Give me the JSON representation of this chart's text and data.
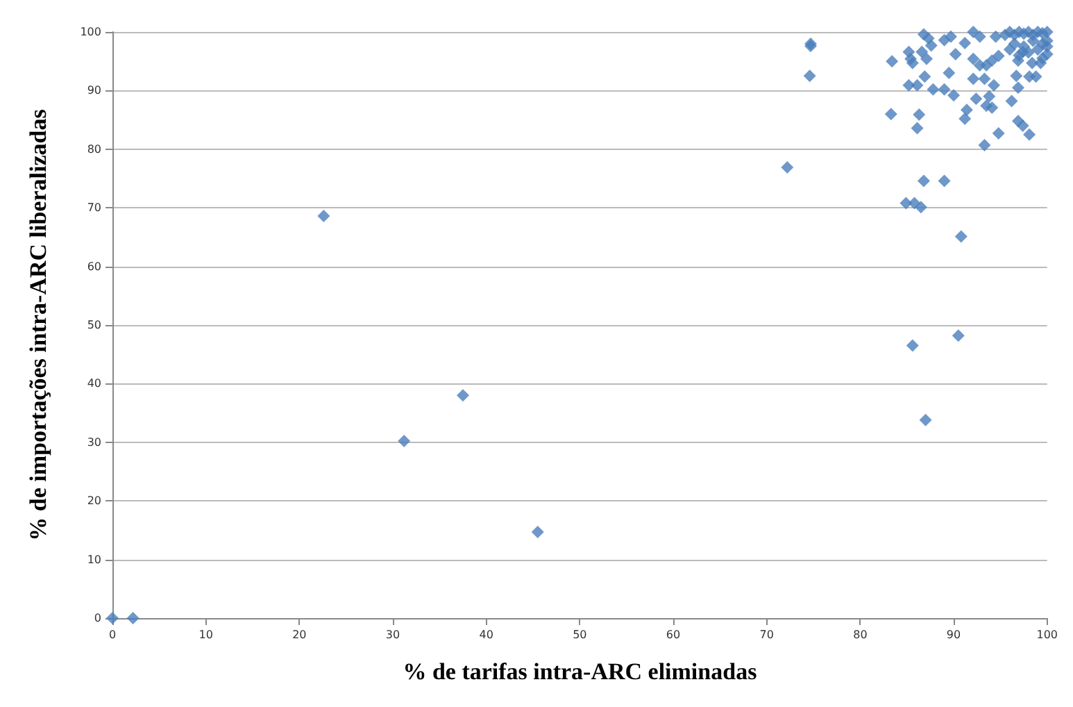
{
  "chart_data": {
    "type": "scatter",
    "xlabel": "% de tarifas intra-ARC eliminadas",
    "ylabel": "% de importações intra-ARC liberalizadas",
    "xlim": [
      0,
      100
    ],
    "ylim": [
      0,
      100
    ],
    "xticks": [
      0,
      10,
      20,
      30,
      40,
      50,
      60,
      70,
      80,
      90,
      100
    ],
    "yticks": [
      0,
      10,
      20,
      30,
      40,
      50,
      60,
      70,
      80,
      90,
      100
    ],
    "grid": "y",
    "marker": "diamond",
    "series": [
      {
        "color": "#4a7ebb",
        "x": [
          0,
          2.2,
          22.6,
          31.2,
          37.5,
          45.5,
          72.2,
          74.7,
          74.7,
          74.6,
          83.3,
          83.4,
          84.9,
          85.8,
          85.6,
          86.5,
          86.8,
          89.0,
          87.0,
          90.5,
          90.8,
          86.8,
          87.3,
          89.0,
          89.7,
          92.1,
          92.8,
          94.5,
          85.2,
          85.4,
          85.6,
          86.6,
          87.6,
          87.1,
          90.2,
          91.2,
          92.1,
          92.8,
          93.5,
          94.1,
          94.8,
          86.9,
          89.5,
          92.1,
          93.3,
          85.2,
          86.1,
          87.8,
          89.0,
          90.0,
          92.4,
          93.8,
          94.3,
          96.2,
          96.7,
          96.9,
          98.1,
          98.8,
          97.4,
          98.4,
          99.3,
          100,
          96.9,
          86.3,
          86.1,
          91.4,
          91.2,
          93.5,
          94.1,
          96.9,
          97.4,
          98.1,
          94.8,
          93.3,
          95.5,
          96,
          96.5,
          97,
          97.5,
          98,
          98.5,
          99,
          99.5,
          100,
          96.5,
          97.5,
          98.5,
          99.5,
          100,
          96,
          97,
          98,
          99,
          99.5,
          100
        ],
        "values": [
          0,
          0,
          68.6,
          30.2,
          38,
          14.7,
          76.9,
          98,
          97.6,
          92.5,
          86,
          95,
          70.8,
          70.8,
          46.5,
          70.1,
          74.6,
          74.6,
          33.8,
          48.2,
          65.1,
          99.6,
          98.9,
          98.6,
          99.2,
          100,
          99.2,
          99.2,
          96.6,
          95.4,
          94.7,
          96.6,
          97.7,
          95.4,
          96.2,
          98.1,
          95.4,
          94.3,
          94.3,
          95.1,
          95.9,
          92.4,
          93.0,
          92.0,
          92.0,
          90.9,
          90.9,
          90.2,
          90.2,
          89.2,
          88.6,
          89.0,
          90.9,
          88.2,
          92.5,
          90.5,
          92.4,
          92.4,
          96.6,
          94.7,
          94.7,
          96.2,
          95.1,
          85.9,
          83.6,
          86.7,
          85.2,
          87.4,
          87.1,
          84.8,
          84.0,
          82.5,
          82.7,
          80.7,
          99.5,
          100,
          99.5,
          100,
          99.7,
          100,
          99.5,
          100,
          99.8,
          100,
          98,
          97.5,
          98.5,
          98,
          97.5,
          97,
          96,
          96.5,
          97,
          95.5,
          98.5
        ]
      }
    ]
  }
}
